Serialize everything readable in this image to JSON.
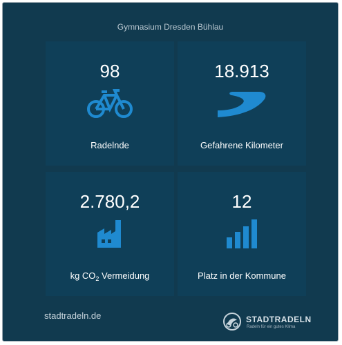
{
  "widget": {
    "title": "Gymnasium Dresden Bühlau",
    "accent_color": "#1f8ad0",
    "background_color": "#113a4f",
    "tile_color": "#0f3f58"
  },
  "stats": [
    {
      "value": "98",
      "label": "Radelnde",
      "icon": "bicycle-icon"
    },
    {
      "value": "18.913",
      "label": "Gefahrene Kilometer",
      "icon": "road-icon"
    },
    {
      "value": "2.780,2",
      "label_prefix": "kg CO",
      "label_sub": "2",
      "label_suffix": " Vermeidung",
      "icon": "factory-icon"
    },
    {
      "value": "12",
      "label": "Platz in der Kommune",
      "icon": "bar-chart-icon"
    }
  ],
  "footer": {
    "link": "stadtradeln.de",
    "brand_name": "STADTRADELN",
    "brand_tagline": "Radeln für ein gutes Klima"
  }
}
